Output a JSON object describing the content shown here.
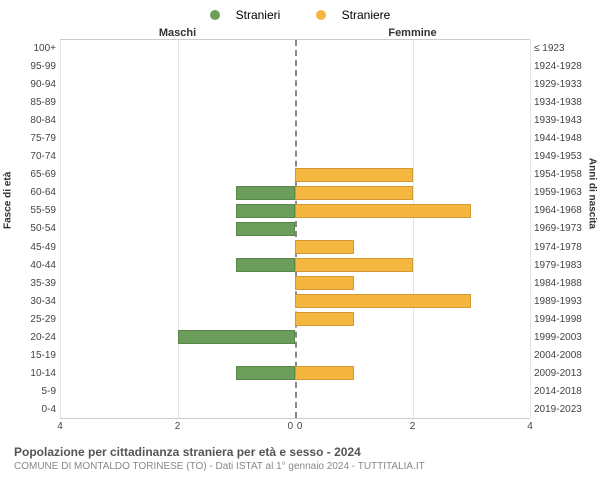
{
  "chart": {
    "type": "population-pyramid",
    "legend": [
      {
        "label": "Stranieri",
        "color": "#6a9e5a"
      },
      {
        "label": "Straniere",
        "color": "#f5b63f"
      }
    ],
    "header_left": "Maschi",
    "header_right": "Femmine",
    "y_left_title": "Fasce di età",
    "y_right_title": "Anni di nascita",
    "x_max": 4,
    "x_ticks": [
      4,
      2,
      0,
      0,
      2,
      4
    ],
    "background_color": "#ffffff",
    "grid_color": "#e5e5e5",
    "center_line_color": "#888888",
    "bar_height_pct": 80,
    "rows": [
      {
        "age": "100+",
        "birth": "≤ 1923",
        "m": 0,
        "f": 0
      },
      {
        "age": "95-99",
        "birth": "1924-1928",
        "m": 0,
        "f": 0
      },
      {
        "age": "90-94",
        "birth": "1929-1933",
        "m": 0,
        "f": 0
      },
      {
        "age": "85-89",
        "birth": "1934-1938",
        "m": 0,
        "f": 0
      },
      {
        "age": "80-84",
        "birth": "1939-1943",
        "m": 0,
        "f": 0
      },
      {
        "age": "75-79",
        "birth": "1944-1948",
        "m": 0,
        "f": 0
      },
      {
        "age": "70-74",
        "birth": "1949-1953",
        "m": 0,
        "f": 0
      },
      {
        "age": "65-69",
        "birth": "1954-1958",
        "m": 0,
        "f": 2
      },
      {
        "age": "60-64",
        "birth": "1959-1963",
        "m": 1,
        "f": 2
      },
      {
        "age": "55-59",
        "birth": "1964-1968",
        "m": 1,
        "f": 3
      },
      {
        "age": "50-54",
        "birth": "1969-1973",
        "m": 1,
        "f": 0
      },
      {
        "age": "45-49",
        "birth": "1974-1978",
        "m": 0,
        "f": 1
      },
      {
        "age": "40-44",
        "birth": "1979-1983",
        "m": 1,
        "f": 2
      },
      {
        "age": "35-39",
        "birth": "1984-1988",
        "m": 0,
        "f": 1
      },
      {
        "age": "30-34",
        "birth": "1989-1993",
        "m": 0,
        "f": 3
      },
      {
        "age": "25-29",
        "birth": "1994-1998",
        "m": 0,
        "f": 1
      },
      {
        "age": "20-24",
        "birth": "1999-2003",
        "m": 2,
        "f": 0
      },
      {
        "age": "15-19",
        "birth": "2004-2008",
        "m": 0,
        "f": 0
      },
      {
        "age": "10-14",
        "birth": "2009-2013",
        "m": 1,
        "f": 1
      },
      {
        "age": "5-9",
        "birth": "2014-2018",
        "m": 0,
        "f": 0
      },
      {
        "age": "0-4",
        "birth": "2019-2023",
        "m": 0,
        "f": 0
      }
    ]
  },
  "footer": {
    "title": "Popolazione per cittadinanza straniera per età e sesso - 2024",
    "subtitle": "COMUNE DI MONTALDO TORINESE (TO) - Dati ISTAT al 1° gennaio 2024 - TUTTITALIA.IT"
  }
}
